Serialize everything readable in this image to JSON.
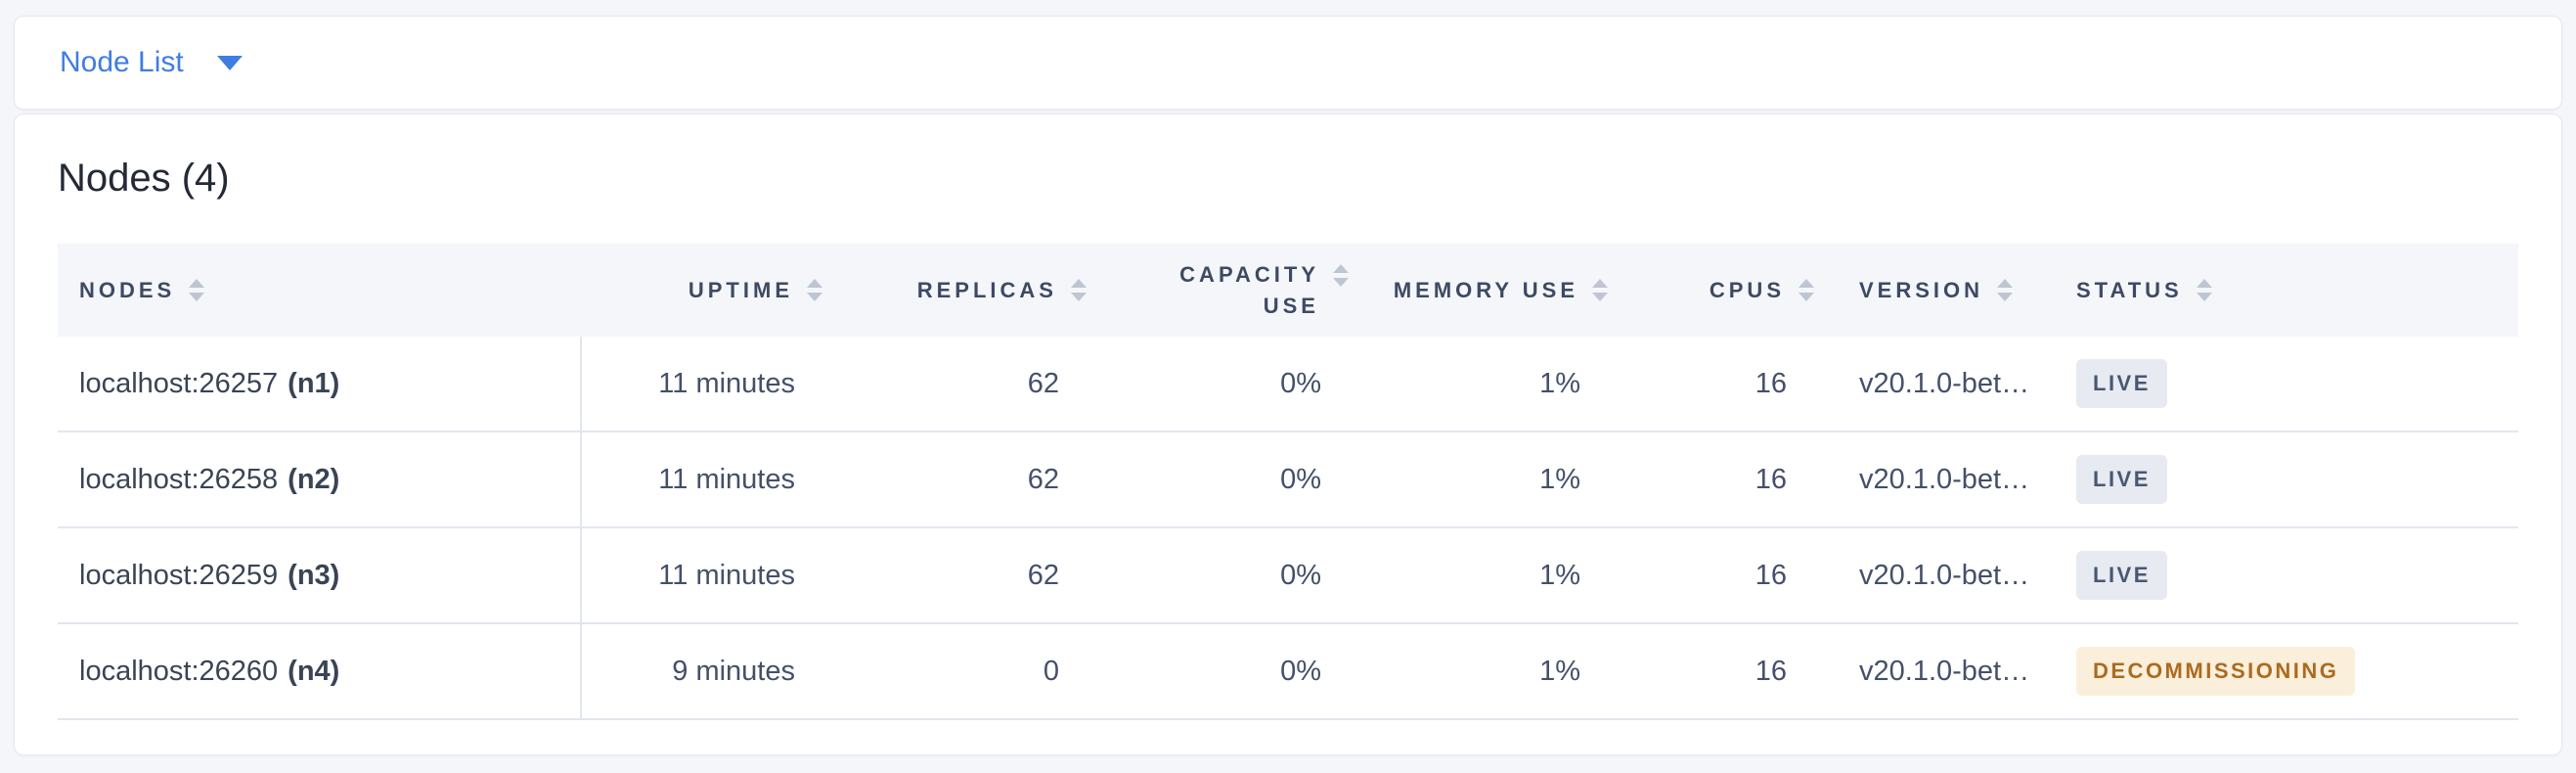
{
  "selector": {
    "label": "Node List"
  },
  "card": {
    "title": "Nodes (4)"
  },
  "table": {
    "columns": [
      {
        "key": "nodes",
        "label": "NODES",
        "align": "left",
        "sortable": true
      },
      {
        "key": "uptime",
        "label": "UPTIME",
        "align": "right",
        "sortable": true
      },
      {
        "key": "replicas",
        "label": "REPLICAS",
        "align": "right",
        "sortable": true
      },
      {
        "key": "capacity_use",
        "label": "CAPACITY USE",
        "align": "right",
        "sortable": true
      },
      {
        "key": "memory_use",
        "label": "MEMORY USE",
        "align": "right",
        "sortable": true
      },
      {
        "key": "cpus",
        "label": "CPUS",
        "align": "right",
        "sortable": true
      },
      {
        "key": "version",
        "label": "VERSION",
        "align": "left",
        "sortable": true
      },
      {
        "key": "status",
        "label": "STATUS",
        "align": "left",
        "sortable": true
      }
    ],
    "rows": [
      {
        "address": "localhost:26257",
        "node_id": "(n1)",
        "uptime": "11 minutes",
        "replicas": "62",
        "capacity_use": "0%",
        "memory_use": "1%",
        "cpus": "16",
        "version": "v20.1.0-bet…",
        "status": "LIVE",
        "status_type": "live"
      },
      {
        "address": "localhost:26258",
        "node_id": "(n2)",
        "uptime": "11 minutes",
        "replicas": "62",
        "capacity_use": "0%",
        "memory_use": "1%",
        "cpus": "16",
        "version": "v20.1.0-bet…",
        "status": "LIVE",
        "status_type": "live"
      },
      {
        "address": "localhost:26259",
        "node_id": "(n3)",
        "uptime": "11 minutes",
        "replicas": "62",
        "capacity_use": "0%",
        "memory_use": "1%",
        "cpus": "16",
        "version": "v20.1.0-bet…",
        "status": "LIVE",
        "status_type": "live"
      },
      {
        "address": "localhost:26260",
        "node_id": "(n4)",
        "uptime": "9 minutes",
        "replicas": "0",
        "capacity_use": "0%",
        "memory_use": "1%",
        "cpus": "16",
        "version": "v20.1.0-bet…",
        "status": "DECOMMISSIONING",
        "status_type": "decommissioning"
      }
    ]
  },
  "colors": {
    "page_bg": "#f4f6fa",
    "accent_blue": "#3f7de0",
    "title_text": "#242a35",
    "thead_bg": "#f4f6f9",
    "header_text": "#3d4a63",
    "body_text": "#394455",
    "muted_text": "#44506a",
    "sort_arrow": "#bfc5d2",
    "row_border": "#e2e6ee",
    "live_badge_bg": "#e7eaf1",
    "live_badge_text": "#475872",
    "decommissioning_badge_bg": "#f9efda",
    "decommissioning_badge_text": "#ad6a1f"
  }
}
